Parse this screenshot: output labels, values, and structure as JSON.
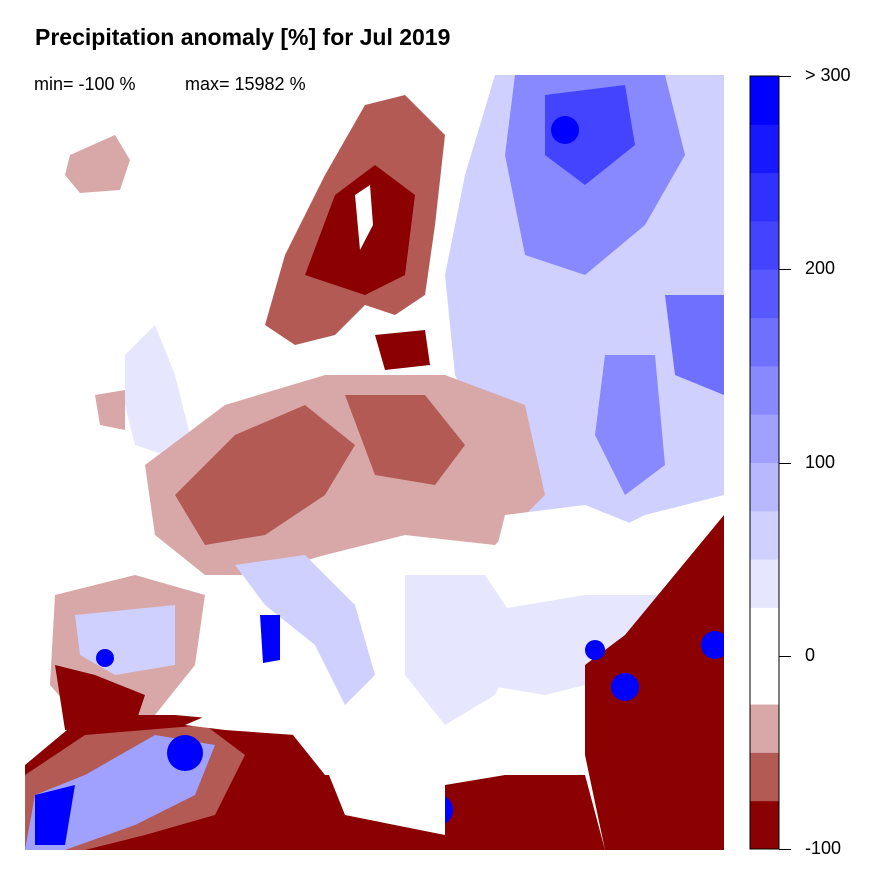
{
  "title": "Precipitation anomaly [%] for Jul 2019",
  "stats": {
    "min": "min= -100 %",
    "max": "max= 15982 %"
  },
  "colorbar": {
    "breaks": [
      -100,
      -75,
      -50,
      -25,
      0,
      25,
      50,
      75,
      100,
      125,
      150,
      175,
      200,
      225,
      250,
      275,
      300
    ],
    "colors": [
      "#8b0000",
      "#b35a55",
      "#d8a8a8",
      "#ffffff",
      "#ffffff",
      "#e6e6ff",
      "#d0d0ff",
      "#b8b8ff",
      "#a0a0ff",
      "#8888ff",
      "#7070ff",
      "#5858ff",
      "#4444ff",
      "#3030ff",
      "#1818ff",
      "#0000ff"
    ],
    "tick_labels": [
      {
        "value": 300,
        "label": "> 300"
      },
      {
        "value": 200,
        "label": "200"
      },
      {
        "value": 100,
        "label": "100"
      },
      {
        "value": 0,
        "label": "0"
      },
      {
        "value": -100,
        "label": "-100"
      }
    ]
  }
}
